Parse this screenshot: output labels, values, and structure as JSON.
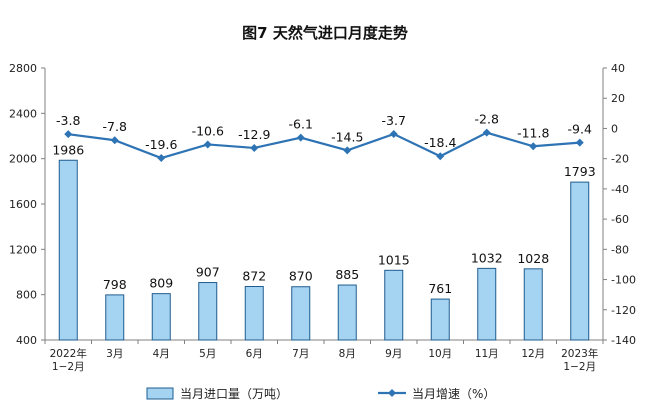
{
  "chart_data": {
    "type": "bar+line",
    "title": "图7  天然气进口月度走势",
    "categories": [
      [
        "2022年",
        "1−2月"
      ],
      [
        "3月"
      ],
      [
        "4月"
      ],
      [
        "5月"
      ],
      [
        "6月"
      ],
      [
        "7月"
      ],
      [
        "8月"
      ],
      [
        "9月"
      ],
      [
        "10月"
      ],
      [
        "11月"
      ],
      [
        "12月"
      ],
      [
        "2023年",
        "1−2月"
      ]
    ],
    "series": [
      {
        "name": "当月进口量（万吨）",
        "type": "bar",
        "axis": "left",
        "values": [
          1986,
          798,
          809,
          907,
          872,
          870,
          885,
          1015,
          761,
          1032,
          1028,
          1793
        ],
        "color": "#a5d3f2",
        "stroke": "#1f5c8f"
      },
      {
        "name": "当月增速（%）",
        "type": "line",
        "axis": "right",
        "values": [
          -3.8,
          -7.8,
          -19.6,
          -10.6,
          -12.9,
          -6.1,
          -14.5,
          -3.7,
          -18.4,
          -2.8,
          -11.8,
          -9.4
        ],
        "color": "#2e74b5"
      }
    ],
    "y_left": {
      "range": [
        400,
        2800
      ],
      "ticks": [
        400,
        800,
        1200,
        1600,
        2000,
        2400,
        2800
      ]
    },
    "y_right": {
      "range": [
        -140,
        40
      ],
      "ticks": [
        40,
        20,
        0,
        -20,
        -40,
        -60,
        -80,
        -100,
        -120,
        -140
      ]
    },
    "grid": false,
    "legend": "bottom"
  }
}
